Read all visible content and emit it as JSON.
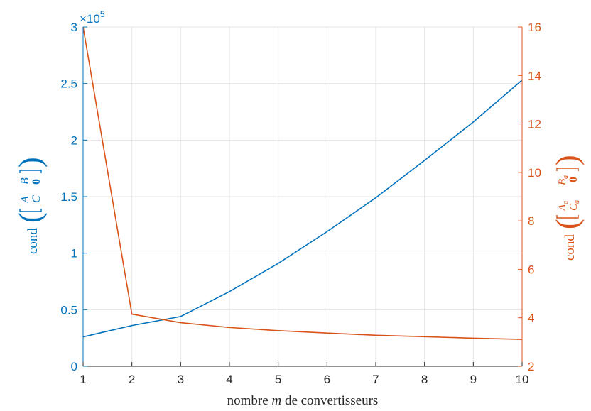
{
  "chart_data": {
    "type": "line",
    "xlabel": "nombre m de convertisseurs",
    "x": [
      1,
      2,
      3,
      4,
      5,
      6,
      7,
      8,
      9,
      10
    ],
    "xlim": [
      1,
      10
    ],
    "x_ticks": [
      "1",
      "2",
      "3",
      "4",
      "5",
      "6",
      "7",
      "8",
      "9",
      "10"
    ],
    "grid": true,
    "left_axis": {
      "ylabel_prefix": "cond",
      "matrix": [
        [
          "A",
          "B"
        ],
        [
          "C",
          "0"
        ]
      ],
      "ylim": [
        0,
        300000
      ],
      "tick_values": [
        0,
        50000,
        100000,
        150000,
        200000,
        250000,
        300000
      ],
      "ticks": [
        "0",
        "0.5",
        "1",
        "1.5",
        "2",
        "2.5",
        "3"
      ],
      "exponent_label": "×10",
      "exponent_power": "5",
      "color": "#0072BD"
    },
    "right_axis": {
      "ylabel_prefix": "cond",
      "matrix": [
        [
          "A",
          "B"
        ],
        [
          "C",
          "0"
        ]
      ],
      "matrix_subscript": "a",
      "ylim": [
        2,
        16
      ],
      "tick_values": [
        2,
        4,
        6,
        8,
        10,
        12,
        14,
        16
      ],
      "ticks": [
        "2",
        "4",
        "6",
        "8",
        "10",
        "12",
        "14",
        "16"
      ],
      "color": "#D95319"
    },
    "series": [
      {
        "axis": "left",
        "color": "#0072BD",
        "values": [
          26000,
          36000,
          44000,
          66000,
          91000,
          119000,
          149000,
          182000,
          216000,
          253000
        ]
      },
      {
        "axis": "right",
        "color": "#D95319",
        "values": [
          16.0,
          4.15,
          3.8,
          3.6,
          3.47,
          3.37,
          3.28,
          3.22,
          3.16,
          3.11
        ]
      }
    ]
  }
}
